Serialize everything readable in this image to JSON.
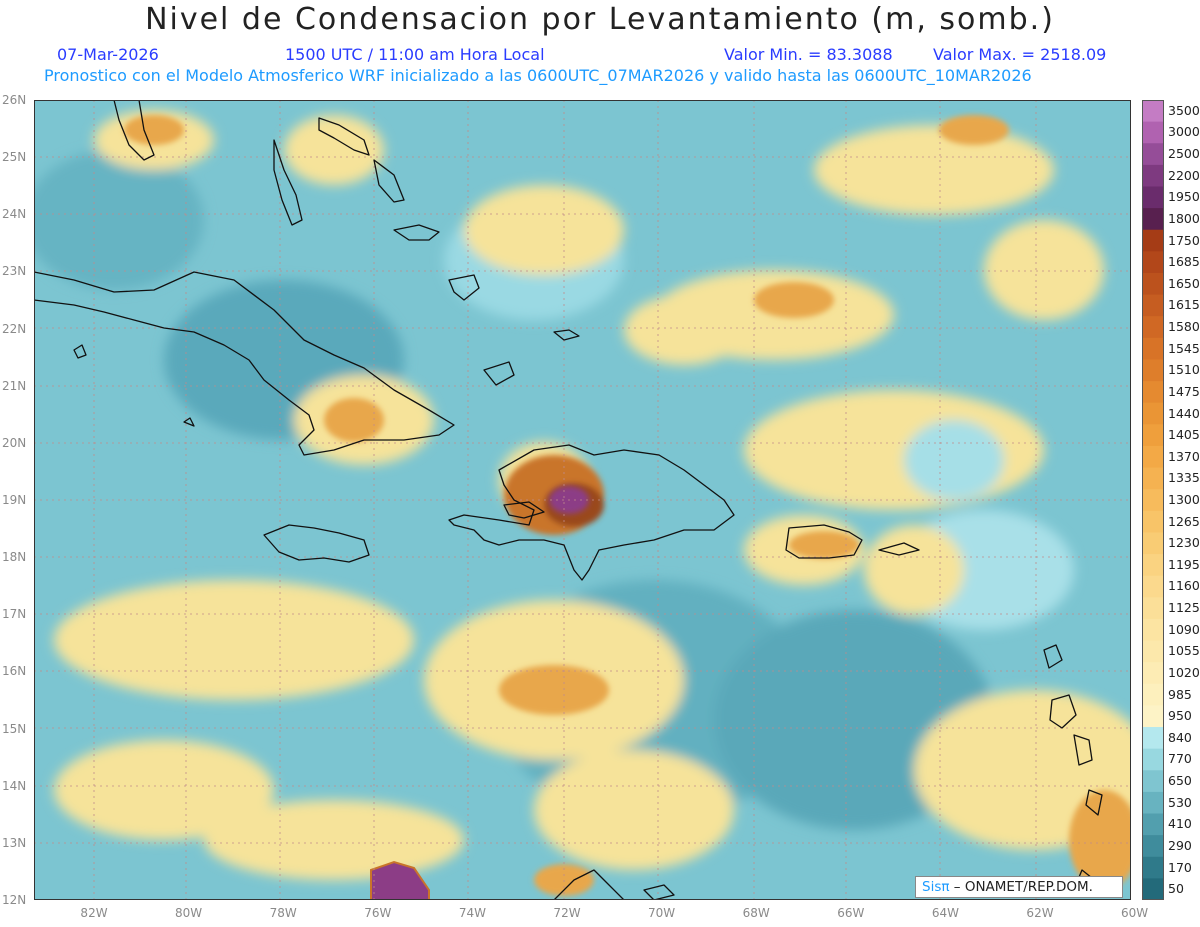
{
  "header": {
    "title": "Nivel de Condensacion por Levantamiento (m, somb.)",
    "date": "07-Mar-2026",
    "time": "1500 UTC / 11:00 am Hora Local",
    "min_label": "Valor Min. = 83.3088",
    "max_label": "Valor Max. = 2518.09",
    "model_line": "Pronostico con el Modelo Atmosferico WRF inicializado a las 0600UTC_07MAR2026 y valido hasta las  0600UTC_10MAR2026"
  },
  "map": {
    "lat_labels": [
      "26N",
      "25N",
      "24N",
      "23N",
      "22N",
      "21N",
      "20N",
      "19N",
      "18N",
      "17N",
      "16N",
      "15N",
      "14N",
      "13N",
      "12N"
    ],
    "lon_labels": [
      "82W",
      "80W",
      "78W",
      "76W",
      "74W",
      "72W",
      "70W",
      "68W",
      "66W",
      "64W",
      "62W",
      "60W"
    ],
    "colors": {
      "low": "#5fb3c4",
      "mid": "#a7e2ea",
      "yellow": "#fbe89a",
      "orange": "#e8a74c",
      "brown": "#9a4a1a",
      "purple": "#8c3d86",
      "coast": "#111111",
      "grid": "#c08a8a"
    }
  },
  "colorbar": {
    "labels": [
      "3500",
      "3000",
      "2500",
      "2200",
      "1950",
      "1800",
      "1750",
      "1685",
      "1650",
      "1615",
      "1580",
      "1545",
      "1510",
      "1475",
      "1440",
      "1405",
      "1370",
      "1335",
      "1300",
      "1265",
      "1230",
      "1195",
      "1160",
      "1125",
      "1090",
      "1055",
      "1020",
      "985",
      "950",
      "840",
      "770",
      "650",
      "530",
      "410",
      "290",
      "170",
      "50"
    ],
    "colors": [
      "#c47cc4",
      "#b062b0",
      "#954d98",
      "#7e3a80",
      "#6a2c6c",
      "#58204f",
      "#a53c16",
      "#b2471a",
      "#bc521d",
      "#c65d21",
      "#d06824",
      "#d87327",
      "#de7e2b",
      "#e58a30",
      "#ea9535",
      "#ef9f3c",
      "#f3a946",
      "#f5b251",
      "#f7bb5c",
      "#f8c468",
      "#f9cc74",
      "#fad381",
      "#fbd98d",
      "#fbdf98",
      "#fce4a2",
      "#fce8ab",
      "#fdecb4",
      "#fdf0bd",
      "#fdf3c6",
      "#b4e8ee",
      "#98d8e0",
      "#7fc5d0",
      "#68b3c0",
      "#529fae",
      "#3f8c9c",
      "#2f7a8a",
      "#236a7a"
    ]
  },
  "credit": {
    "brand": "Sisπ",
    "text": " – ONAMET/REP.DOM."
  }
}
